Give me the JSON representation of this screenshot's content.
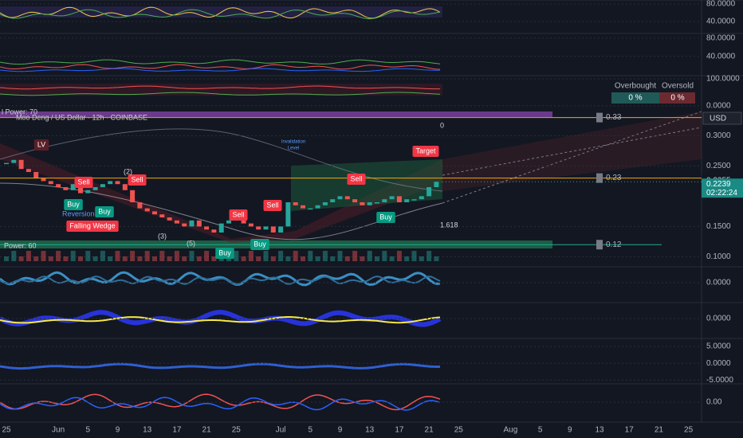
{
  "chart_data": [
    {
      "type": "candles",
      "title": "Moo Deng / US Dollar · 12h · COINBASE",
      "categories": [
        "25",
        null,
        null,
        null,
        null,
        null,
        null,
        "Jun",
        null,
        null,
        null,
        "5",
        null,
        null,
        null,
        "9",
        null,
        null,
        null,
        "13",
        null,
        null,
        null,
        "17",
        null,
        null,
        null,
        "21",
        null,
        null,
        null,
        "25",
        null,
        null,
        null,
        null,
        null,
        "Jul",
        null,
        null,
        null,
        "5",
        null,
        null,
        null,
        "9",
        null,
        null,
        null,
        "13",
        null,
        null,
        null,
        "17",
        null,
        null,
        null,
        "21",
        null,
        null,
        null,
        "25",
        null,
        null,
        null,
        null,
        null,
        null,
        "Aug",
        null,
        null,
        null,
        "5",
        null,
        null,
        null,
        "9",
        null,
        null,
        null,
        "13",
        null,
        null,
        null,
        "17",
        null,
        null,
        null,
        "21",
        null,
        null,
        null,
        "25"
      ],
      "values": [
        0.255,
        0.26,
        0.245,
        0.24,
        0.23,
        0.225,
        0.22,
        0.215,
        0.21,
        0.22,
        0.205,
        0.21,
        0.215,
        0.22,
        0.225,
        0.22,
        0.21,
        0.19,
        0.18,
        0.175,
        0.17,
        0.165,
        0.16,
        0.155,
        0.15,
        0.16,
        0.15,
        0.145,
        0.14,
        0.155,
        0.16,
        0.165,
        0.155,
        0.15,
        0.145,
        0.15,
        0.14,
        0.15,
        0.19,
        0.185,
        0.18,
        0.18,
        0.185,
        0.19,
        0.195,
        0.2,
        0.195,
        0.19,
        0.185,
        0.19,
        0.19,
        0.195,
        0.2,
        0.19,
        0.195,
        0.195,
        0.2,
        0.215,
        0.2239,
        null,
        null,
        null,
        null,
        null,
        null,
        null,
        null,
        null,
        null,
        null,
        null,
        null,
        null,
        null,
        null,
        null,
        null,
        null,
        null,
        null,
        null,
        null,
        null,
        null,
        null,
        null,
        null,
        null,
        null,
        null,
        null,
        null,
        null
      ],
      "up_color": "#26a69a",
      "down_color": "#ef5350",
      "ylim": [
        0.09,
        0.34
      ],
      "yticks": [
        {
          "value": 0.3,
          "label": "0.3000"
        },
        {
          "value": 0.25,
          "label": "0.2500"
        },
        {
          "value": 0.15,
          "label": "0.1500"
        },
        {
          "value": 0.1,
          "label": "0.1000"
        }
      ],
      "levels": [
        0.33,
        0.23,
        0.12
      ],
      "level_colors": [
        "#f7a600",
        "#f7a600",
        "#22ab94"
      ],
      "alert_price": 0.2255,
      "last_price": 0.2239,
      "countdown": "02:22:24",
      "currency": "USD",
      "annotations": [
        "l Power: 70",
        "LV",
        "Target",
        "Sell",
        "Sell",
        "Sell",
        "Sell",
        "Sell",
        "Buy",
        "Buy",
        "Buy",
        "Buy",
        "Buy",
        "Reversion",
        "Falling Wedge",
        "(2)",
        "(3)",
        "(5)",
        "Invalidation",
        "Level",
        "1.618",
        "Power: 60",
        "0"
      ],
      "table": {
        "header": [
          "Overbought",
          "Oversold"
        ],
        "cells": [
          "0 %",
          "0 %"
        ]
      }
    },
    {
      "type": "line",
      "ylim": [
        20,
        89
      ],
      "yticks": [
        {
          "value": 80,
          "label": "80.0000"
        },
        {
          "value": 40,
          "label": "40.0000"
        }
      ]
    },
    {
      "type": "line",
      "ylim": [
        -2,
        90
      ],
      "yticks": [
        {
          "value": 80,
          "label": "80.0000"
        },
        {
          "value": 40,
          "label": "40.0000"
        }
      ]
    },
    {
      "type": "line",
      "ylim": [
        -21,
        112
      ],
      "yticks": [
        {
          "value": 100,
          "label": "100.0000"
        },
        {
          "value": 0,
          "label": "0.0000"
        }
      ]
    },
    {
      "type": "line",
      "ylim": [
        -1,
        1
      ],
      "yticks": [
        {
          "value": 0,
          "label": "0.0000"
        }
      ]
    },
    {
      "type": "line",
      "ylim": [
        -1,
        1
      ],
      "yticks": [
        {
          "value": 0,
          "label": "0.0000"
        }
      ]
    },
    {
      "type": "line",
      "ylim": [
        -5.2,
        7.4
      ],
      "yticks": [
        {
          "value": 5,
          "label": "5.0000"
        },
        {
          "value": 0,
          "label": "0.0000"
        },
        {
          "value": -5,
          "label": "-5.0000"
        }
      ]
    },
    {
      "type": "line",
      "ylim": [
        -1,
        1
      ],
      "yticks": [
        {
          "value": 0,
          "label": "0.00"
        }
      ]
    }
  ]
}
